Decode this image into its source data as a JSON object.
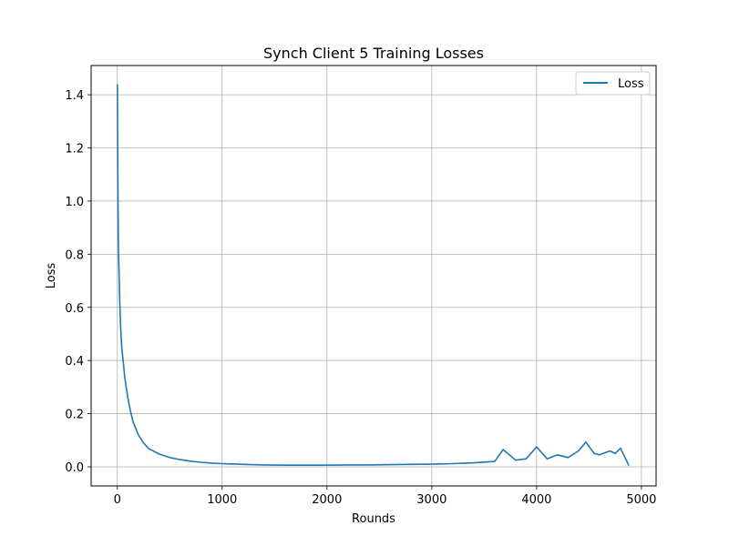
{
  "chart_data": {
    "type": "line",
    "title": "Synch Client 5 Training Losses",
    "xlabel": "Rounds",
    "ylabel": "Loss",
    "xlim": [
      -250,
      5140
    ],
    "ylim": [
      -0.072,
      1.51
    ],
    "xticks": [
      0,
      1000,
      2000,
      3000,
      4000,
      5000
    ],
    "xtick_labels": [
      "0",
      "1000",
      "2000",
      "3000",
      "4000",
      "5000"
    ],
    "yticks": [
      0.0,
      0.2,
      0.4,
      0.6,
      0.8,
      1.0,
      1.2,
      1.4
    ],
    "ytick_labels": [
      "0.0",
      "0.2",
      "0.4",
      "0.6",
      "0.8",
      "1.0",
      "1.2",
      "1.4"
    ],
    "grid": true,
    "legend_position": "top-right",
    "series": [
      {
        "name": "Loss",
        "color": "#1f77b4",
        "x": [
          0,
          5,
          10,
          15,
          20,
          25,
          30,
          40,
          50,
          60,
          70,
          80,
          100,
          125,
          150,
          200,
          250,
          300,
          400,
          500,
          600,
          700,
          800,
          900,
          1000,
          1200,
          1400,
          1600,
          1800,
          2000,
          2200,
          2400,
          2600,
          2800,
          3000,
          3200,
          3400,
          3600,
          3680,
          3800,
          3900,
          4000,
          4100,
          4200,
          4300,
          4400,
          4470,
          4550,
          4600,
          4700,
          4750,
          4800,
          4880
        ],
        "y": [
          1.44,
          1.1,
          0.84,
          0.75,
          0.67,
          0.6,
          0.54,
          0.46,
          0.42,
          0.38,
          0.34,
          0.31,
          0.26,
          0.21,
          0.17,
          0.12,
          0.09,
          0.068,
          0.048,
          0.035,
          0.027,
          0.021,
          0.017,
          0.014,
          0.012,
          0.009,
          0.007,
          0.006,
          0.006,
          0.006,
          0.007,
          0.007,
          0.008,
          0.009,
          0.01,
          0.012,
          0.015,
          0.02,
          0.065,
          0.025,
          0.03,
          0.075,
          0.03,
          0.045,
          0.035,
          0.06,
          0.093,
          0.05,
          0.045,
          0.06,
          0.05,
          0.07,
          0.005
        ]
      }
    ]
  }
}
